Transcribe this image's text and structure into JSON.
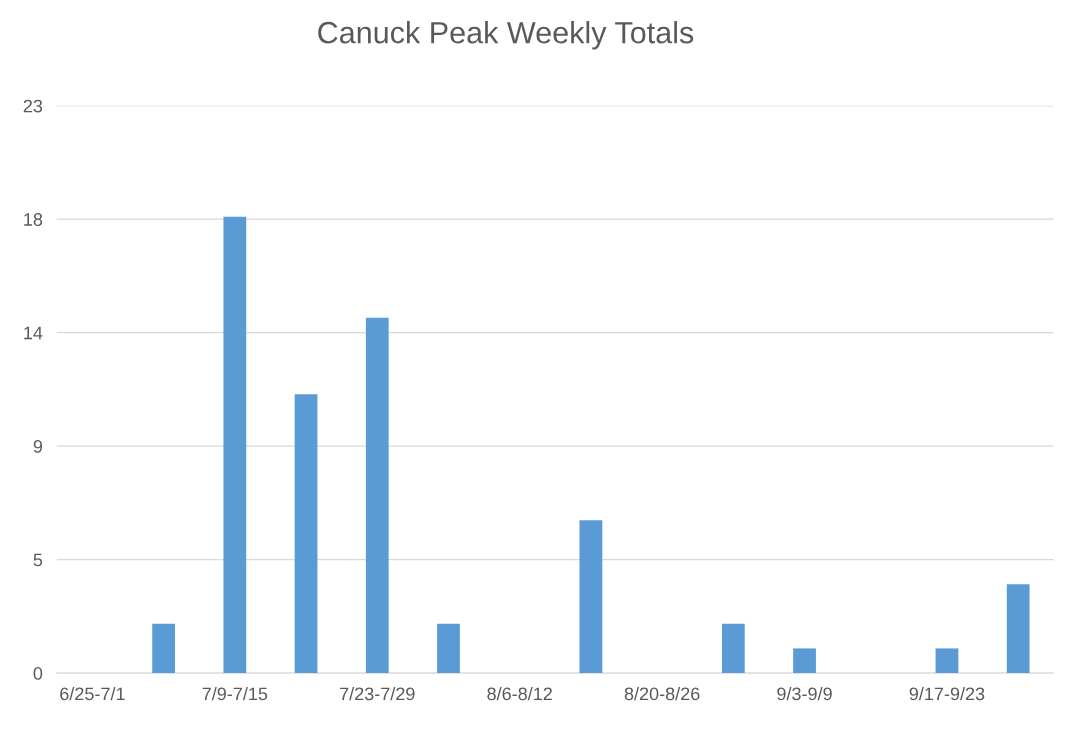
{
  "chart_data": {
    "type": "bar",
    "title": "Canuck Peak Weekly Totals",
    "categories": [
      "6/25-7/1",
      null,
      "7/9-7/15",
      null,
      "7/23-7/29",
      null,
      "8/6-8/12",
      null,
      "8/20-8/26",
      null,
      "9/3-9/9",
      null,
      "9/17-9/23",
      null
    ],
    "values": [
      0,
      2,
      18.5,
      11.3,
      14.4,
      2,
      0,
      6.2,
      0,
      2,
      1,
      0,
      1,
      3.6
    ],
    "color": "#5b9bd5",
    "ylim": [
      0,
      23
    ],
    "yticks": [
      0,
      {
        "value": 4.6,
        "label": "5"
      },
      {
        "value": 9.2,
        "label": "9"
      },
      {
        "value": 13.8,
        "label": "14"
      },
      {
        "value": 18.4,
        "label": "18"
      },
      23
    ],
    "grid": "y"
  }
}
